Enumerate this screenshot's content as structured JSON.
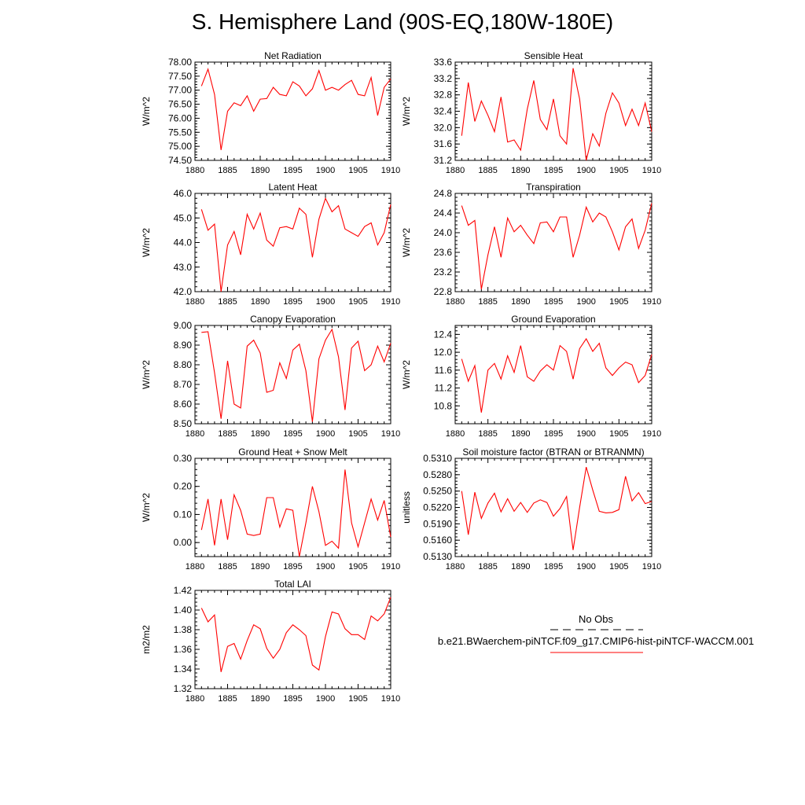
{
  "title": "S. Hemisphere Land (90S-EQ,180W-180E)",
  "legend": {
    "obs_label": "No Obs",
    "obs_line": "dashed",
    "case_label": "b.e21.BWaerchem-piNTCF.f09_g17.CMIP6-hist-piNTCF-WACCM.001",
    "case_color": "#ff0000"
  },
  "colors": {
    "series": "#ff0000",
    "axis": "#000000",
    "obs": "#000000"
  },
  "chart_data": [
    {
      "type": "line",
      "title": "Net Radiation",
      "ylabel": "W/m^2",
      "xlim": [
        1880,
        1910
      ],
      "ylim": [
        74.5,
        78.0
      ],
      "xticks": [
        "1880",
        "1885",
        "1890",
        "1895",
        "1900",
        "1905",
        "1910"
      ],
      "yticks": [
        "74.50",
        "75.00",
        "75.50",
        "76.00",
        "76.50",
        "77.00",
        "77.50",
        "78.00"
      ],
      "series": [
        {
          "x": [
            1881,
            1882,
            1883,
            1884,
            1885,
            1886,
            1887,
            1888,
            1889,
            1890,
            1891,
            1892,
            1893,
            1894,
            1895,
            1896,
            1897,
            1898,
            1899,
            1900,
            1901,
            1902,
            1903,
            1904,
            1905,
            1906,
            1907,
            1908,
            1909,
            1910
          ],
          "values": [
            77.15,
            77.75,
            76.85,
            74.87,
            76.25,
            76.55,
            76.45,
            76.8,
            76.25,
            76.68,
            76.7,
            77.1,
            76.85,
            76.8,
            77.3,
            77.15,
            76.8,
            77.05,
            77.7,
            77.0,
            77.1,
            77.0,
            77.2,
            77.35,
            76.85,
            76.8,
            77.45,
            76.1,
            77.1,
            77.4
          ]
        }
      ]
    },
    {
      "type": "line",
      "title": "Sensible Heat",
      "ylabel": "W/m^2",
      "xlim": [
        1880,
        1910
      ],
      "ylim": [
        31.2,
        33.6
      ],
      "xticks": [
        "1880",
        "1885",
        "1890",
        "1895",
        "1900",
        "1905",
        "1910"
      ],
      "yticks": [
        "31.2",
        "31.6",
        "32.0",
        "32.4",
        "32.8",
        "33.2",
        "33.6"
      ],
      "series": [
        {
          "x": [
            1881,
            1882,
            1883,
            1884,
            1885,
            1886,
            1887,
            1888,
            1889,
            1890,
            1891,
            1892,
            1893,
            1894,
            1895,
            1896,
            1897,
            1898,
            1899,
            1900,
            1901,
            1902,
            1903,
            1904,
            1905,
            1906,
            1907,
            1908,
            1909,
            1910
          ],
          "values": [
            31.8,
            33.1,
            32.15,
            32.65,
            32.3,
            31.9,
            32.75,
            31.65,
            31.7,
            31.45,
            32.45,
            33.15,
            32.2,
            31.95,
            32.7,
            31.8,
            31.6,
            33.45,
            32.7,
            31.2,
            31.85,
            31.55,
            32.35,
            32.85,
            32.6,
            32.05,
            32.45,
            32.05,
            32.6,
            31.9
          ]
        }
      ]
    },
    {
      "type": "line",
      "title": "Latent Heat",
      "ylabel": "W/m^2",
      "xlim": [
        1880,
        1910
      ],
      "ylim": [
        42.0,
        46.0
      ],
      "xticks": [
        "1880",
        "1885",
        "1890",
        "1895",
        "1900",
        "1905",
        "1910"
      ],
      "yticks": [
        "42.0",
        "43.0",
        "44.0",
        "45.0",
        "46.0"
      ],
      "series": [
        {
          "x": [
            1881,
            1882,
            1883,
            1884,
            1885,
            1886,
            1887,
            1888,
            1889,
            1890,
            1891,
            1892,
            1893,
            1894,
            1895,
            1896,
            1897,
            1898,
            1899,
            1900,
            1901,
            1902,
            1903,
            1904,
            1905,
            1906,
            1907,
            1908,
            1909,
            1910
          ],
          "values": [
            45.35,
            44.5,
            44.75,
            41.95,
            43.9,
            44.45,
            43.5,
            45.15,
            44.55,
            45.2,
            44.1,
            43.85,
            44.6,
            44.65,
            44.55,
            45.4,
            45.15,
            43.4,
            44.95,
            45.8,
            45.25,
            45.5,
            44.55,
            44.4,
            44.25,
            44.65,
            44.8,
            43.9,
            44.4,
            45.55
          ]
        }
      ]
    },
    {
      "type": "line",
      "title": "Transpiration",
      "ylabel": "W/m^2",
      "xlim": [
        1880,
        1910
      ],
      "ylim": [
        22.8,
        24.8
      ],
      "xticks": [
        "1880",
        "1885",
        "1890",
        "1895",
        "1900",
        "1905",
        "1910"
      ],
      "yticks": [
        "22.8",
        "23.2",
        "23.6",
        "24.0",
        "24.4",
        "24.8"
      ],
      "series": [
        {
          "x": [
            1881,
            1882,
            1883,
            1884,
            1885,
            1886,
            1887,
            1888,
            1889,
            1890,
            1891,
            1892,
            1893,
            1894,
            1895,
            1896,
            1897,
            1898,
            1899,
            1900,
            1901,
            1902,
            1903,
            1904,
            1905,
            1906,
            1907,
            1908,
            1909,
            1910
          ],
          "values": [
            24.55,
            24.15,
            24.25,
            22.85,
            23.55,
            24.12,
            23.5,
            24.3,
            24.02,
            24.15,
            23.95,
            23.78,
            24.2,
            24.22,
            24.02,
            24.32,
            24.32,
            23.5,
            23.95,
            24.52,
            24.22,
            24.4,
            24.32,
            24.02,
            23.65,
            24.12,
            24.28,
            23.68,
            24.05,
            24.6
          ]
        }
      ]
    },
    {
      "type": "line",
      "title": "Canopy Evaporation",
      "ylabel": "W/m^2",
      "xlim": [
        1880,
        1910
      ],
      "ylim": [
        8.5,
        9.0
      ],
      "xticks": [
        "1880",
        "1885",
        "1890",
        "1895",
        "1900",
        "1905",
        "1910"
      ],
      "yticks": [
        "8.50",
        "8.60",
        "8.70",
        "8.80",
        "8.90",
        "9.00"
      ],
      "series": [
        {
          "x": [
            1881,
            1882,
            1883,
            1884,
            1885,
            1886,
            1887,
            1888,
            1889,
            1890,
            1891,
            1892,
            1893,
            1894,
            1895,
            1896,
            1897,
            1898,
            1899,
            1900,
            1901,
            1902,
            1903,
            1904,
            1905,
            1906,
            1907,
            1908,
            1909,
            1910
          ],
          "values": [
            8.965,
            8.968,
            8.76,
            8.525,
            8.82,
            8.6,
            8.58,
            8.895,
            8.925,
            8.86,
            8.66,
            8.67,
            8.81,
            8.73,
            8.875,
            8.905,
            8.77,
            8.51,
            8.83,
            8.925,
            8.98,
            8.84,
            8.57,
            8.885,
            8.92,
            8.77,
            8.8,
            8.895,
            8.815,
            8.91
          ]
        }
      ]
    },
    {
      "type": "line",
      "title": "Ground Evaporation",
      "ylabel": "W/m^2",
      "xlim": [
        1880,
        1910
      ],
      "ylim": [
        10.4,
        12.6
      ],
      "xticks": [
        "1880",
        "1885",
        "1890",
        "1895",
        "1900",
        "1905",
        "1910"
      ],
      "yticks": [
        "10.8",
        "11.2",
        "11.6",
        "12.0",
        "12.4"
      ],
      "series": [
        {
          "x": [
            1881,
            1882,
            1883,
            1884,
            1885,
            1886,
            1887,
            1888,
            1889,
            1890,
            1891,
            1892,
            1893,
            1894,
            1895,
            1896,
            1897,
            1898,
            1899,
            1900,
            1901,
            1902,
            1903,
            1904,
            1905,
            1906,
            1907,
            1908,
            1909,
            1910
          ],
          "values": [
            11.85,
            11.35,
            11.7,
            10.65,
            11.6,
            11.75,
            11.4,
            11.92,
            11.55,
            12.15,
            11.45,
            11.35,
            11.58,
            11.72,
            11.6,
            12.15,
            12.02,
            11.4,
            12.08,
            12.3,
            12.02,
            12.2,
            11.65,
            11.48,
            11.65,
            11.78,
            11.72,
            11.32,
            11.48,
            11.95
          ]
        }
      ]
    },
    {
      "type": "line",
      "title": "Ground Heat + Snow Melt",
      "ylabel": "W/m^2",
      "xlim": [
        1880,
        1910
      ],
      "ylim": [
        -0.05,
        0.3
      ],
      "xticks": [
        "1880",
        "1885",
        "1890",
        "1895",
        "1900",
        "1905",
        "1910"
      ],
      "yticks": [
        "0.00",
        "0.10",
        "0.20",
        "0.30"
      ],
      "ytick_values": [
        0.0,
        0.1,
        0.2,
        0.3
      ],
      "series": [
        {
          "x": [
            1881,
            1882,
            1883,
            1884,
            1885,
            1886,
            1887,
            1888,
            1889,
            1890,
            1891,
            1892,
            1893,
            1894,
            1895,
            1896,
            1897,
            1898,
            1899,
            1900,
            1901,
            1902,
            1903,
            1904,
            1905,
            1906,
            1907,
            1908,
            1909,
            1910
          ],
          "values": [
            0.045,
            0.155,
            -0.01,
            0.155,
            0.01,
            0.17,
            0.115,
            0.03,
            0.025,
            0.03,
            0.16,
            0.16,
            0.055,
            0.12,
            0.115,
            -0.05,
            0.07,
            0.2,
            0.11,
            -0.01,
            0.005,
            -0.02,
            0.26,
            0.07,
            -0.015,
            0.07,
            0.155,
            0.08,
            0.15,
            0.02
          ]
        }
      ]
    },
    {
      "type": "line",
      "title": "Soil moisture factor (BTRAN or BTRANMN)",
      "ylabel": "unitless",
      "xlim": [
        1880,
        1910
      ],
      "ylim": [
        0.513,
        0.531
      ],
      "xticks": [
        "1880",
        "1885",
        "1890",
        "1895",
        "1900",
        "1905",
        "1910"
      ],
      "yticks": [
        "0.5130",
        "0.5160",
        "0.5190",
        "0.5220",
        "0.5250",
        "0.5280",
        "0.5310"
      ],
      "series": [
        {
          "x": [
            1881,
            1882,
            1883,
            1884,
            1885,
            1886,
            1887,
            1888,
            1889,
            1890,
            1891,
            1892,
            1893,
            1894,
            1895,
            1896,
            1897,
            1898,
            1899,
            1900,
            1901,
            1902,
            1903,
            1904,
            1905,
            1906,
            1907,
            1908,
            1909,
            1910
          ],
          "values": [
            0.525,
            0.517,
            0.5248,
            0.52,
            0.5228,
            0.5246,
            0.5212,
            0.5236,
            0.5213,
            0.5229,
            0.5211,
            0.5228,
            0.5234,
            0.5229,
            0.5204,
            0.5218,
            0.524,
            0.5142,
            0.522,
            0.5294,
            0.5252,
            0.5213,
            0.521,
            0.5211,
            0.5216,
            0.5277,
            0.5232,
            0.5247,
            0.5227,
            0.5231
          ]
        }
      ]
    },
    {
      "type": "line",
      "title": "Total LAI",
      "ylabel": "m2/m2",
      "xlim": [
        1880,
        1910
      ],
      "ylim": [
        1.32,
        1.42
      ],
      "xticks": [
        "1880",
        "1885",
        "1890",
        "1895",
        "1900",
        "1905",
        "1910"
      ],
      "yticks": [
        "1.32",
        "1.34",
        "1.36",
        "1.38",
        "1.40",
        "1.42"
      ],
      "series": [
        {
          "x": [
            1881,
            1882,
            1883,
            1884,
            1885,
            1886,
            1887,
            1888,
            1889,
            1890,
            1891,
            1892,
            1893,
            1894,
            1895,
            1896,
            1897,
            1898,
            1899,
            1900,
            1901,
            1902,
            1903,
            1904,
            1905,
            1906,
            1907,
            1908,
            1909,
            1910
          ],
          "values": [
            1.402,
            1.388,
            1.395,
            1.337,
            1.363,
            1.366,
            1.35,
            1.369,
            1.385,
            1.381,
            1.361,
            1.351,
            1.36,
            1.377,
            1.385,
            1.38,
            1.374,
            1.344,
            1.339,
            1.373,
            1.398,
            1.396,
            1.381,
            1.375,
            1.375,
            1.37,
            1.394,
            1.389,
            1.396,
            1.413
          ]
        }
      ]
    }
  ]
}
